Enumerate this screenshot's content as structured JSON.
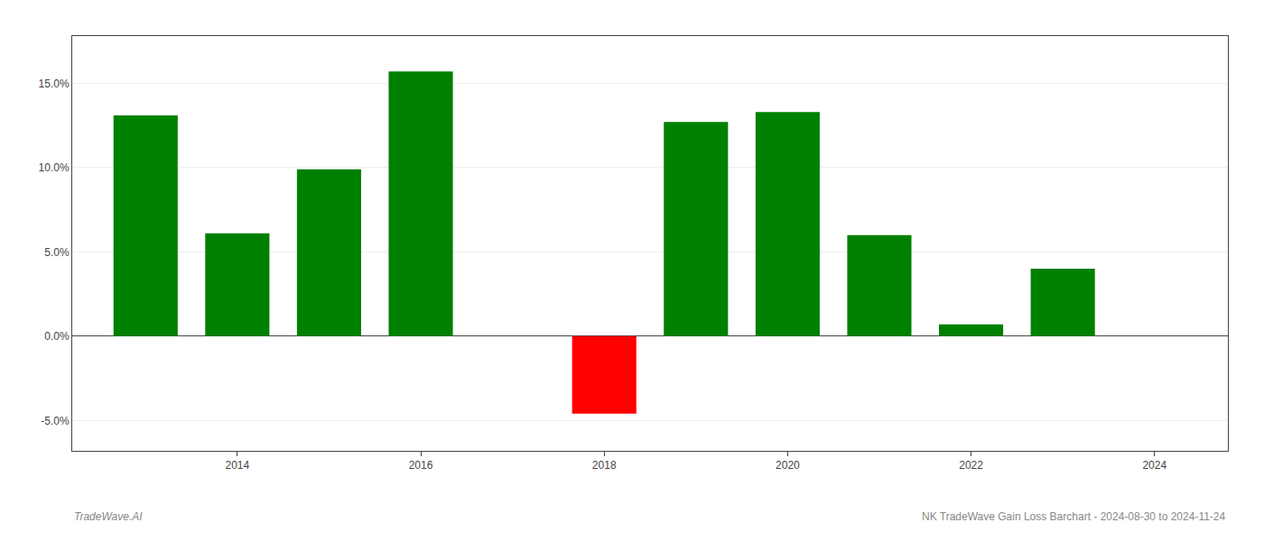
{
  "chart_data": {
    "type": "bar",
    "x": [
      2013,
      2014,
      2015,
      2016,
      2018,
      2019,
      2020,
      2021,
      2022,
      2023
    ],
    "values": [
      0.131,
      0.061,
      0.099,
      0.157,
      -0.046,
      0.127,
      0.133,
      0.06,
      0.007,
      0.04
    ],
    "colors": [
      "#008000",
      "#008000",
      "#008000",
      "#008000",
      "#ff0000",
      "#008000",
      "#008000",
      "#008000",
      "#008000",
      "#008000"
    ],
    "xlim": [
      2012.2,
      2024.8
    ],
    "xticks": [
      2014,
      2016,
      2018,
      2020,
      2022,
      2024
    ],
    "ylim": [
      -0.068,
      0.178
    ],
    "yticks": [
      {
        "value": -0.05,
        "label": "-5.0%"
      },
      {
        "value": 0.0,
        "label": "0.0%"
      },
      {
        "value": 0.1,
        "label": "10.0%"
      },
      {
        "value": 0.05,
        "label": "5.0%"
      },
      {
        "value": 0.15,
        "label": "15.0%"
      }
    ],
    "grid": true,
    "annotations": [
      "TradeWave.AI",
      "NK TradeWave Gain Loss Barchart - 2024-08-30 to 2024-11-24"
    ]
  }
}
